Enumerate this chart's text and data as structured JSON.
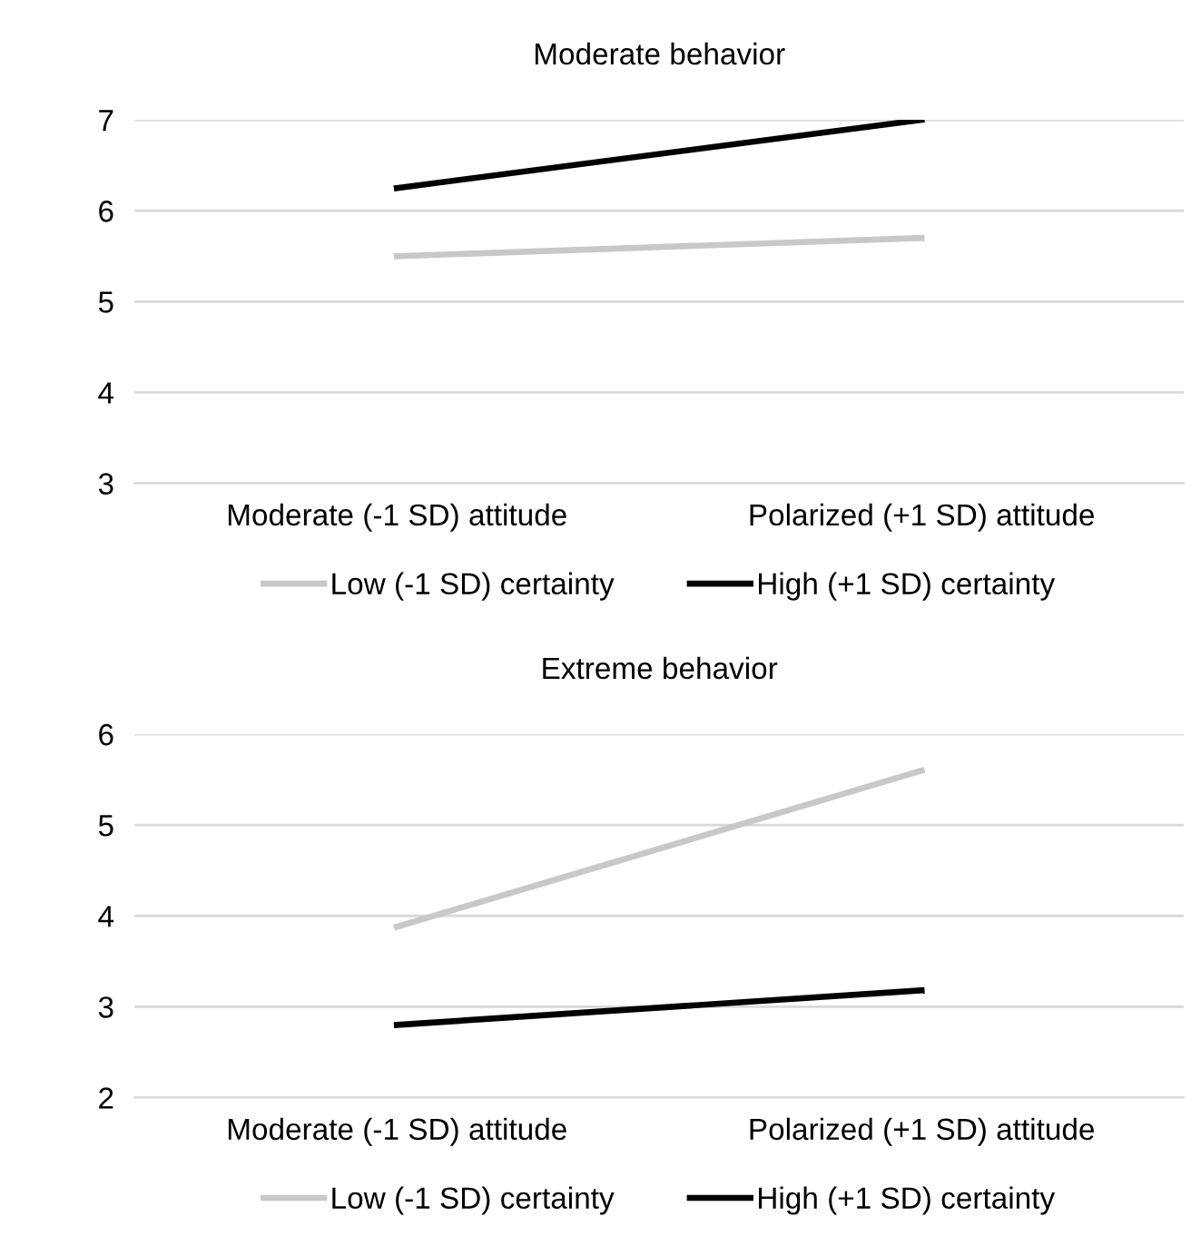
{
  "chart_data": [
    {
      "type": "line",
      "title": "Moderate behavior",
      "categories": [
        "Moderate (-1 SD) attitude",
        "Polarized (+1 SD) attitude"
      ],
      "ylim": [
        3,
        7
      ],
      "yticks": [
        3,
        4,
        5,
        6,
        7
      ],
      "grid": "y",
      "legend": "bottom",
      "marker": "none",
      "line_style": "solid",
      "series": [
        {
          "name": "Low (-1 SD) certainty",
          "color": "#c8c8c8",
          "values": [
            5.5,
            5.7
          ]
        },
        {
          "name": "High (+1 SD) certainty",
          "color": "#000000",
          "values": [
            6.25,
            7.0
          ]
        }
      ]
    },
    {
      "type": "line",
      "title": "Extreme behavior",
      "categories": [
        "Moderate (-1 SD) attitude",
        "Polarized (+1 SD) attitude"
      ],
      "ylim": [
        2,
        6
      ],
      "yticks": [
        2,
        3,
        4,
        5,
        6
      ],
      "grid": "y",
      "legend": "bottom",
      "marker": "none",
      "line_style": "solid",
      "series": [
        {
          "name": "Low (-1 SD) certainty",
          "color": "#c8c8c8",
          "values": [
            3.88,
            5.6
          ]
        },
        {
          "name": "High (+1 SD) certainty",
          "color": "#000000",
          "values": [
            2.8,
            3.18
          ]
        }
      ]
    }
  ]
}
